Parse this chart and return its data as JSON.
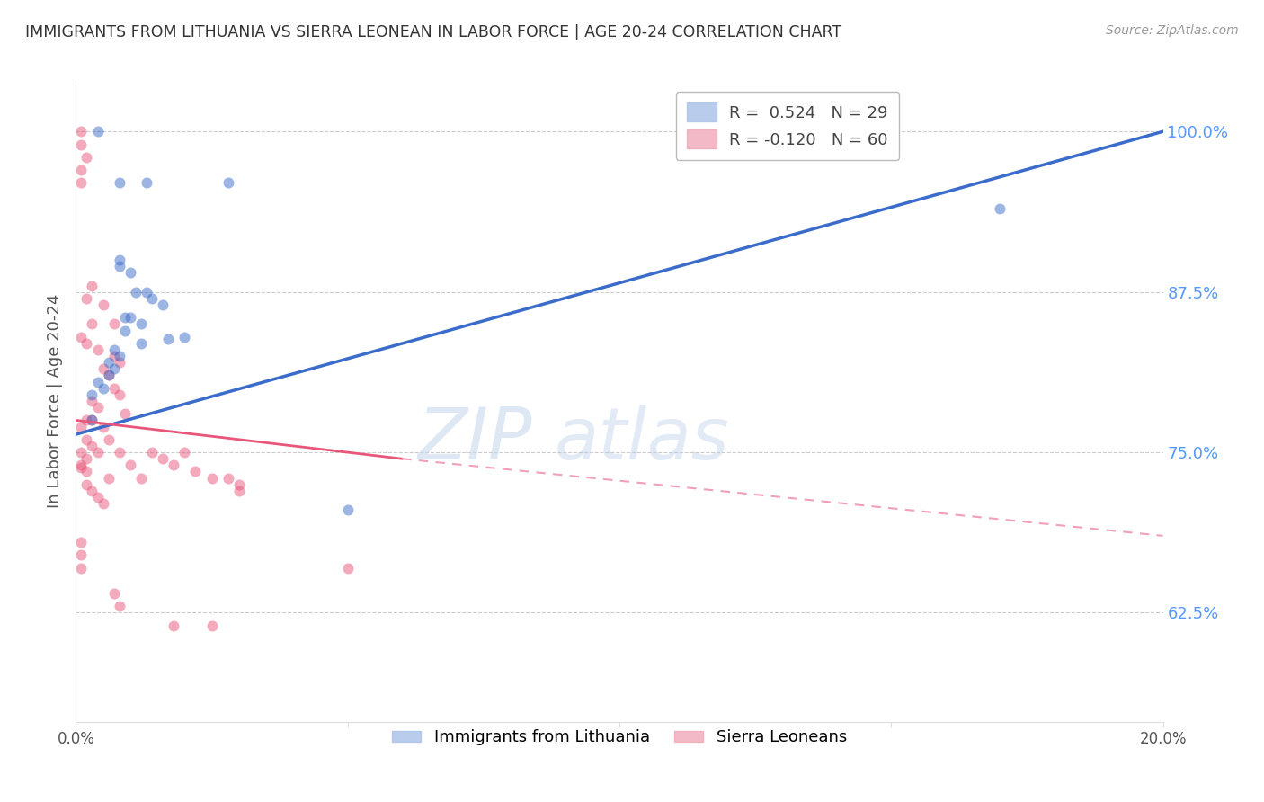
{
  "title": "IMMIGRANTS FROM LITHUANIA VS SIERRA LEONEAN IN LABOR FORCE | AGE 20-24 CORRELATION CHART",
  "source": "Source: ZipAtlas.com",
  "ylabel": "In Labor Force | Age 20-24",
  "xlim": [
    0.0,
    0.2
  ],
  "ylim": [
    0.54,
    1.04
  ],
  "yticks_right": [
    1.0,
    0.875,
    0.75,
    0.625
  ],
  "ytick_right_labels": [
    "100.0%",
    "87.5%",
    "75.0%",
    "62.5%"
  ],
  "blue_scatter": [
    [
      0.004,
      1.0
    ],
    [
      0.008,
      0.96
    ],
    [
      0.013,
      0.96
    ],
    [
      0.028,
      0.96
    ],
    [
      0.17,
      0.94
    ],
    [
      0.008,
      0.9
    ],
    [
      0.008,
      0.895
    ],
    [
      0.01,
      0.89
    ],
    [
      0.011,
      0.875
    ],
    [
      0.013,
      0.875
    ],
    [
      0.014,
      0.87
    ],
    [
      0.016,
      0.865
    ],
    [
      0.01,
      0.855
    ],
    [
      0.009,
      0.855
    ],
    [
      0.012,
      0.85
    ],
    [
      0.009,
      0.845
    ],
    [
      0.02,
      0.84
    ],
    [
      0.017,
      0.838
    ],
    [
      0.012,
      0.835
    ],
    [
      0.007,
      0.83
    ],
    [
      0.008,
      0.825
    ],
    [
      0.006,
      0.82
    ],
    [
      0.007,
      0.815
    ],
    [
      0.006,
      0.81
    ],
    [
      0.004,
      0.805
    ],
    [
      0.005,
      0.8
    ],
    [
      0.003,
      0.795
    ],
    [
      0.003,
      0.775
    ],
    [
      0.05,
      0.705
    ]
  ],
  "pink_scatter": [
    [
      0.001,
      1.0
    ],
    [
      0.001,
      0.99
    ],
    [
      0.002,
      0.98
    ],
    [
      0.001,
      0.97
    ],
    [
      0.001,
      0.96
    ],
    [
      0.003,
      0.88
    ],
    [
      0.002,
      0.87
    ],
    [
      0.005,
      0.865
    ],
    [
      0.003,
      0.85
    ],
    [
      0.007,
      0.85
    ],
    [
      0.001,
      0.84
    ],
    [
      0.002,
      0.835
    ],
    [
      0.004,
      0.83
    ],
    [
      0.007,
      0.825
    ],
    [
      0.008,
      0.82
    ],
    [
      0.005,
      0.815
    ],
    [
      0.006,
      0.81
    ],
    [
      0.007,
      0.8
    ],
    [
      0.008,
      0.795
    ],
    [
      0.003,
      0.79
    ],
    [
      0.004,
      0.785
    ],
    [
      0.009,
      0.78
    ],
    [
      0.002,
      0.775
    ],
    [
      0.003,
      0.775
    ],
    [
      0.001,
      0.77
    ],
    [
      0.005,
      0.77
    ],
    [
      0.006,
      0.76
    ],
    [
      0.002,
      0.76
    ],
    [
      0.003,
      0.755
    ],
    [
      0.004,
      0.75
    ],
    [
      0.001,
      0.75
    ],
    [
      0.002,
      0.745
    ],
    [
      0.001,
      0.74
    ],
    [
      0.001,
      0.738
    ],
    [
      0.002,
      0.735
    ],
    [
      0.006,
      0.73
    ],
    [
      0.002,
      0.725
    ],
    [
      0.003,
      0.72
    ],
    [
      0.004,
      0.715
    ],
    [
      0.005,
      0.71
    ],
    [
      0.008,
      0.75
    ],
    [
      0.01,
      0.74
    ],
    [
      0.012,
      0.73
    ],
    [
      0.014,
      0.75
    ],
    [
      0.016,
      0.745
    ],
    [
      0.018,
      0.74
    ],
    [
      0.02,
      0.75
    ],
    [
      0.022,
      0.735
    ],
    [
      0.025,
      0.73
    ],
    [
      0.028,
      0.73
    ],
    [
      0.03,
      0.725
    ],
    [
      0.03,
      0.72
    ],
    [
      0.001,
      0.68
    ],
    [
      0.001,
      0.67
    ],
    [
      0.001,
      0.66
    ],
    [
      0.05,
      0.66
    ],
    [
      0.007,
      0.64
    ],
    [
      0.008,
      0.63
    ],
    [
      0.018,
      0.615
    ],
    [
      0.025,
      0.615
    ]
  ],
  "blue_line_color": "#3B6CC9",
  "pink_line_solid_color": "#E8567A",
  "pink_line_dash_color": "#F0A0B8",
  "watermark_zip": "ZIP",
  "watermark_atlas": "atlas",
  "background_color": "#FFFFFF",
  "grid_color": "#CCCCCC",
  "title_color": "#333333",
  "right_axis_color": "#5599FF",
  "scatter_alpha": 0.5,
  "scatter_size": 75,
  "blue_trend": [
    0.0,
    0.764,
    0.2,
    1.0
  ],
  "pink_trend_solid": [
    0.0,
    0.775,
    0.06,
    0.745
  ],
  "pink_trend_dash": [
    0.06,
    0.745,
    0.2,
    0.685
  ]
}
